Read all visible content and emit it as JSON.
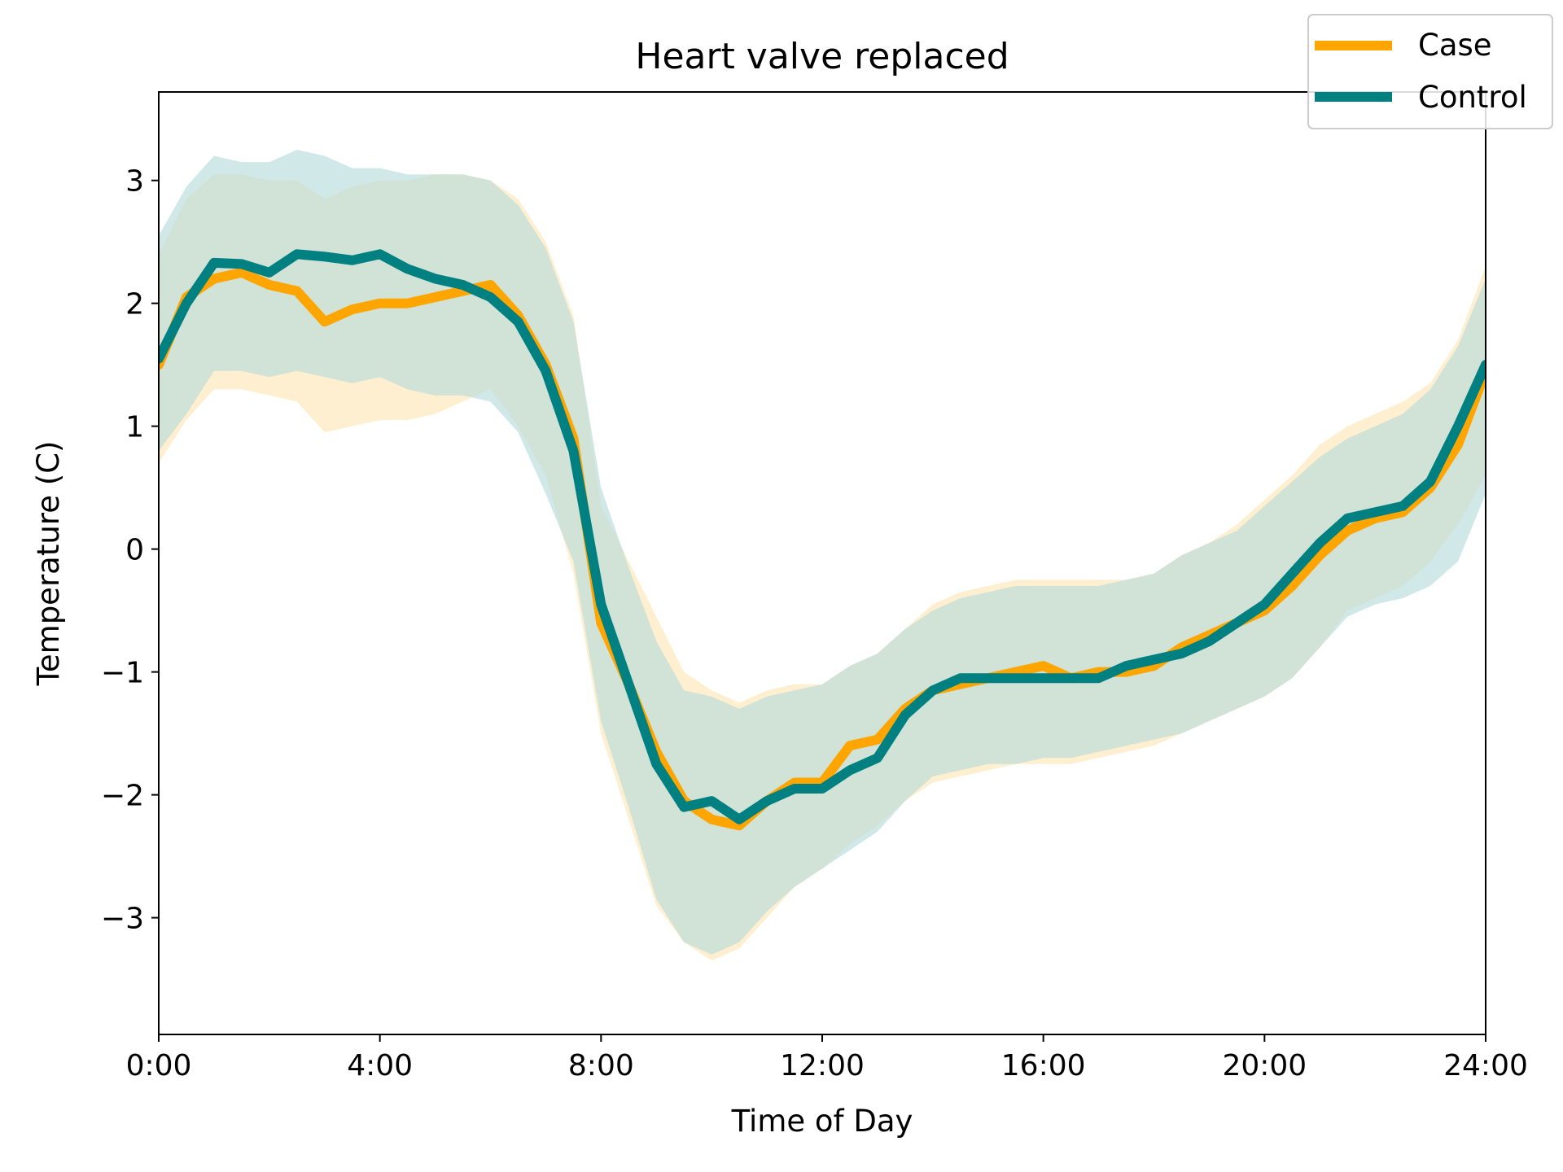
{
  "chart_data": {
    "type": "line",
    "title": "Heart valve replaced",
    "xlabel": "Time of Day",
    "ylabel": "Temperature (C)",
    "xlim": [
      0,
      24
    ],
    "ylim": [
      -3.95,
      3.72
    ],
    "xticks": [
      0,
      4,
      8,
      12,
      16,
      20,
      24
    ],
    "xtick_labels": [
      "0:00",
      "4:00",
      "8:00",
      "12:00",
      "16:00",
      "20:00",
      "24:00"
    ],
    "yticks": [
      -3,
      -2,
      -1,
      0,
      1,
      2,
      3
    ],
    "ytick_labels": [
      "−3",
      "−2",
      "−1",
      "0",
      "1",
      "2",
      "3"
    ],
    "grid": false,
    "legend_position": "top-right",
    "x": [
      0,
      0.5,
      1,
      1.5,
      2,
      2.5,
      3,
      3.5,
      4,
      4.5,
      5,
      5.5,
      6,
      6.5,
      7,
      7.5,
      8,
      8.5,
      9,
      9.5,
      10,
      10.5,
      11,
      11.5,
      12,
      12.5,
      13,
      13.5,
      14,
      14.5,
      15,
      15.5,
      16,
      16.5,
      17,
      17.5,
      18,
      18.5,
      19,
      19.5,
      20,
      20.5,
      21,
      21.5,
      22,
      22.5,
      23,
      23.5,
      24
    ],
    "series": [
      {
        "name": "Case",
        "color": "#FFA500",
        "band_color": "#FFE4B3",
        "values": [
          1.5,
          2.05,
          2.2,
          2.25,
          2.15,
          2.1,
          1.85,
          1.95,
          2.0,
          2.0,
          2.05,
          2.1,
          2.15,
          1.9,
          1.5,
          0.9,
          -0.6,
          -1.1,
          -1.65,
          -2.05,
          -2.2,
          -2.25,
          -2.05,
          -1.9,
          -1.9,
          -1.6,
          -1.55,
          -1.3,
          -1.15,
          -1.1,
          -1.05,
          -1.0,
          -0.95,
          -1.05,
          -1.0,
          -1.0,
          -0.95,
          -0.8,
          -0.7,
          -0.6,
          -0.5,
          -0.3,
          -0.05,
          0.15,
          0.25,
          0.3,
          0.5,
          0.85,
          1.45
        ],
        "lower": [
          0.7,
          1.05,
          1.3,
          1.3,
          1.25,
          1.2,
          0.95,
          1.0,
          1.05,
          1.05,
          1.1,
          1.2,
          1.3,
          1.0,
          0.6,
          -0.2,
          -1.5,
          -2.2,
          -2.9,
          -3.2,
          -3.35,
          -3.25,
          -3.0,
          -2.75,
          -2.6,
          -2.4,
          -2.25,
          -2.05,
          -1.9,
          -1.85,
          -1.8,
          -1.75,
          -1.75,
          -1.75,
          -1.7,
          -1.65,
          -1.6,
          -1.5,
          -1.4,
          -1.3,
          -1.2,
          -1.05,
          -0.8,
          -0.5,
          -0.4,
          -0.3,
          -0.1,
          0.2,
          0.6
        ],
        "upper": [
          2.4,
          2.85,
          3.05,
          3.05,
          3.0,
          3.0,
          2.85,
          2.95,
          3.0,
          3.0,
          3.05,
          3.05,
          3.0,
          2.85,
          2.5,
          1.9,
          0.35,
          -0.1,
          -0.55,
          -1.0,
          -1.15,
          -1.25,
          -1.15,
          -1.1,
          -1.1,
          -0.95,
          -0.85,
          -0.65,
          -0.45,
          -0.35,
          -0.3,
          -0.25,
          -0.25,
          -0.25,
          -0.25,
          -0.25,
          -0.2,
          -0.05,
          0.05,
          0.2,
          0.4,
          0.6,
          0.85,
          1.0,
          1.1,
          1.2,
          1.35,
          1.7,
          2.3
        ]
      },
      {
        "name": "Control",
        "color": "#008080",
        "band_color": "#B3D9D9",
        "values": [
          1.55,
          2.0,
          2.33,
          2.32,
          2.25,
          2.4,
          2.38,
          2.35,
          2.4,
          2.28,
          2.2,
          2.15,
          2.05,
          1.85,
          1.45,
          0.8,
          -0.45,
          -1.1,
          -1.75,
          -2.1,
          -2.05,
          -2.2,
          -2.05,
          -1.95,
          -1.95,
          -1.8,
          -1.7,
          -1.35,
          -1.15,
          -1.05,
          -1.05,
          -1.05,
          -1.05,
          -1.05,
          -1.05,
          -0.95,
          -0.9,
          -0.85,
          -0.75,
          -0.6,
          -0.45,
          -0.2,
          0.05,
          0.25,
          0.3,
          0.35,
          0.55,
          1.0,
          1.5
        ],
        "lower": [
          0.8,
          1.1,
          1.45,
          1.45,
          1.4,
          1.45,
          1.4,
          1.35,
          1.4,
          1.3,
          1.25,
          1.25,
          1.2,
          0.95,
          0.45,
          -0.1,
          -1.4,
          -2.1,
          -2.85,
          -3.2,
          -3.3,
          -3.2,
          -2.95,
          -2.75,
          -2.6,
          -2.45,
          -2.3,
          -2.05,
          -1.85,
          -1.8,
          -1.75,
          -1.75,
          -1.7,
          -1.7,
          -1.65,
          -1.6,
          -1.55,
          -1.5,
          -1.4,
          -1.3,
          -1.2,
          -1.05,
          -0.8,
          -0.55,
          -0.45,
          -0.4,
          -0.3,
          -0.1,
          0.45
        ],
        "upper": [
          2.55,
          2.95,
          3.2,
          3.15,
          3.15,
          3.25,
          3.2,
          3.1,
          3.1,
          3.05,
          3.05,
          3.05,
          3.0,
          2.8,
          2.45,
          1.85,
          0.5,
          -0.15,
          -0.75,
          -1.15,
          -1.2,
          -1.3,
          -1.2,
          -1.15,
          -1.1,
          -0.95,
          -0.85,
          -0.65,
          -0.5,
          -0.4,
          -0.35,
          -0.3,
          -0.3,
          -0.3,
          -0.3,
          -0.25,
          -0.2,
          -0.05,
          0.05,
          0.15,
          0.35,
          0.55,
          0.75,
          0.9,
          1.0,
          1.1,
          1.3,
          1.65,
          2.2
        ]
      }
    ]
  }
}
